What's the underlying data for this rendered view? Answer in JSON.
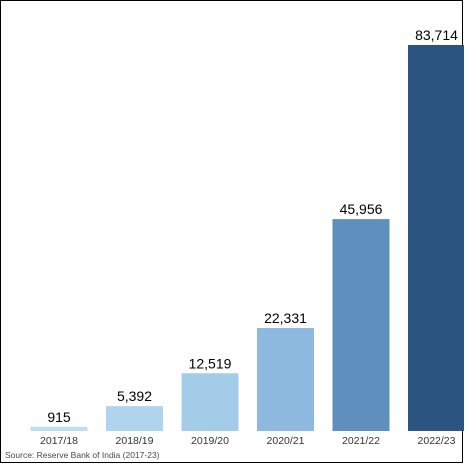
{
  "chart_data": {
    "type": "bar",
    "categories": [
      "2017/18",
      "2018/19",
      "2019/20",
      "2020/21",
      "2021/22",
      "2022/23"
    ],
    "values": [
      915,
      5392,
      12519,
      22331,
      45956,
      83714
    ],
    "value_labels": [
      "915",
      "5,392",
      "12,519",
      "22,331",
      "45,956",
      "83,714"
    ],
    "colors": [
      "#bfdcf0",
      "#b0d4ee",
      "#a3cce8",
      "#8db9df",
      "#5f8fbd",
      "#2b5580"
    ],
    "title": "",
    "xlabel": "",
    "ylabel": "",
    "ylim": [
      0,
      83714
    ],
    "grid": false,
    "legend": "none"
  },
  "source": "Source: Reserve Bank of India (2017-23)"
}
